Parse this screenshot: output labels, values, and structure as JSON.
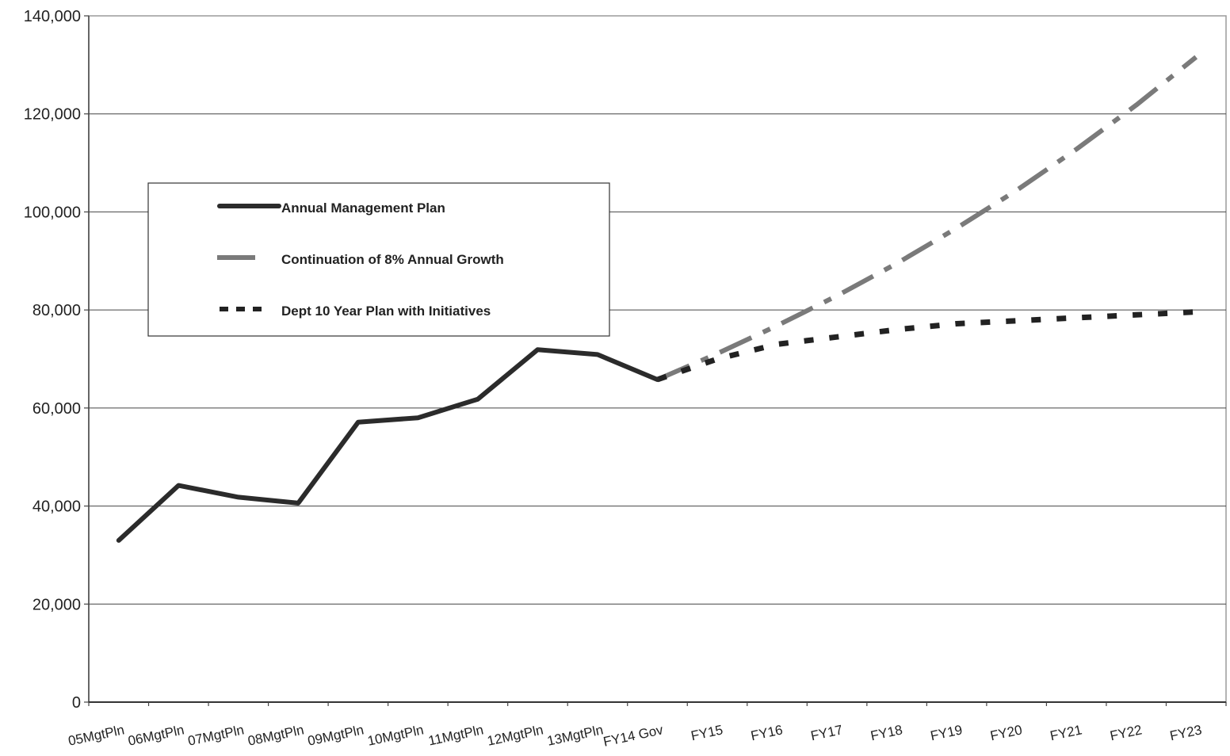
{
  "chart_data": {
    "type": "line",
    "categories": [
      "05MgtPln",
      "06MgtPln",
      "07MgtPln",
      "08MgtPln",
      "09MgtPln",
      "10MgtPln",
      "11MgtPln",
      "12MgtPln",
      "13MgtPln",
      "FY14 Gov",
      "FY15",
      "FY16",
      "FY17",
      "FY18",
      "FY19",
      "FY20",
      "FY21",
      "FY22",
      "FY23"
    ],
    "ylim": [
      0,
      140000
    ],
    "yticks": [
      0,
      20000,
      40000,
      60000,
      80000,
      100000,
      120000,
      140000
    ],
    "ytick_labels": [
      "0",
      "20,000",
      "40,000",
      "60,000",
      "80,000",
      "100,000",
      "120,000",
      "140,000"
    ],
    "grid": true,
    "legend_placement": "upper-left",
    "series": [
      {
        "name": "Annual Management Plan",
        "style": "solid",
        "color": "#2b2b2b",
        "values": [
          33000,
          44200,
          41800,
          40600,
          57100,
          58000,
          61800,
          71900,
          70900,
          65800,
          null,
          null,
          null,
          null,
          null,
          null,
          null,
          null,
          null
        ]
      },
      {
        "name": "Continuation of 8% Annual Growth",
        "style": "dashed",
        "color": "#7a7a7a",
        "values": [
          null,
          null,
          null,
          null,
          null,
          null,
          null,
          null,
          null,
          65800,
          71100,
          76800,
          82900,
          89500,
          96700,
          104400,
          112800,
          121800,
          131600
        ]
      },
      {
        "name": "Dept 10 Year Plan with Initiatives",
        "style": "dotted",
        "color": "#222222",
        "values": [
          null,
          null,
          null,
          null,
          null,
          null,
          null,
          null,
          null,
          65800,
          70000,
          73000,
          74500,
          76000,
          77200,
          77800,
          78400,
          79000,
          79600
        ]
      }
    ]
  }
}
